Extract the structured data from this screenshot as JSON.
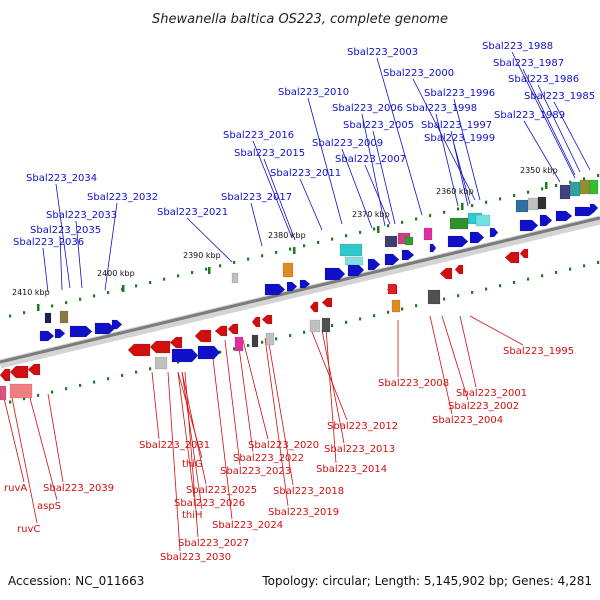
{
  "header": {
    "title": "Shewanella baltica OS223, complete genome"
  },
  "footer": {
    "accession": "Accession: NC_011663",
    "summary": "Topology: circular; Length: 5,145,902 bp; Genes: 4,281"
  },
  "scale_ticks": [
    "2350 kbp",
    "2360 kbp",
    "2370 kbp",
    "2380 kbp",
    "2390 kbp",
    "2400 kbp",
    "2410 kbp"
  ],
  "labels_top": [
    "Sbal223_1988",
    "Sbal223_2003",
    "Sbal223_1987",
    "Sbal223_2000",
    "Sbal223_1986",
    "Sbal223_2010",
    "Sbal223_1996",
    "Sbal223_1985",
    "Sbal223_2006",
    "Sbal223_1998",
    "Sbal223_1989",
    "Sbal223_2005",
    "Sbal223_1997",
    "Sbal223_2016",
    "Sbal223_2009",
    "Sbal223_1999",
    "Sbal223_2015",
    "Sbal223_2007",
    "Sbal223_2011",
    "Sbal223_2034",
    "Sbal223_2032",
    "Sbal223_2017",
    "Sbal223_2021",
    "Sbal223_2033",
    "Sbal223_2035",
    "Sbal223_2036"
  ],
  "labels_bottom": [
    "Sbal223_1995",
    "Sbal223_2008",
    "Sbal223_2001",
    "Sbal223_2002",
    "Sbal223_2004",
    "Sbal223_2012",
    "Sbal223_2031",
    "Sbal223_2020",
    "Sbal223_2013",
    "thiG",
    "Sbal223_2022",
    "Sbal223_2014",
    "Sbal223_2023",
    "ruvA",
    "Sbal223_2039",
    "Sbal223_2018",
    "Sbal223_2025",
    "aspS",
    "Sbal223_2026",
    "Sbal223_2019",
    "thiH",
    "Sbal223_2024",
    "ruvC",
    "Sbal223_2027",
    "Sbal223_2030"
  ],
  "colors": {
    "forward_strand": "#1010c8",
    "reverse_strand": "#d01010",
    "backbone": "#8a8a8a",
    "tick": "#1e7a1e"
  }
}
